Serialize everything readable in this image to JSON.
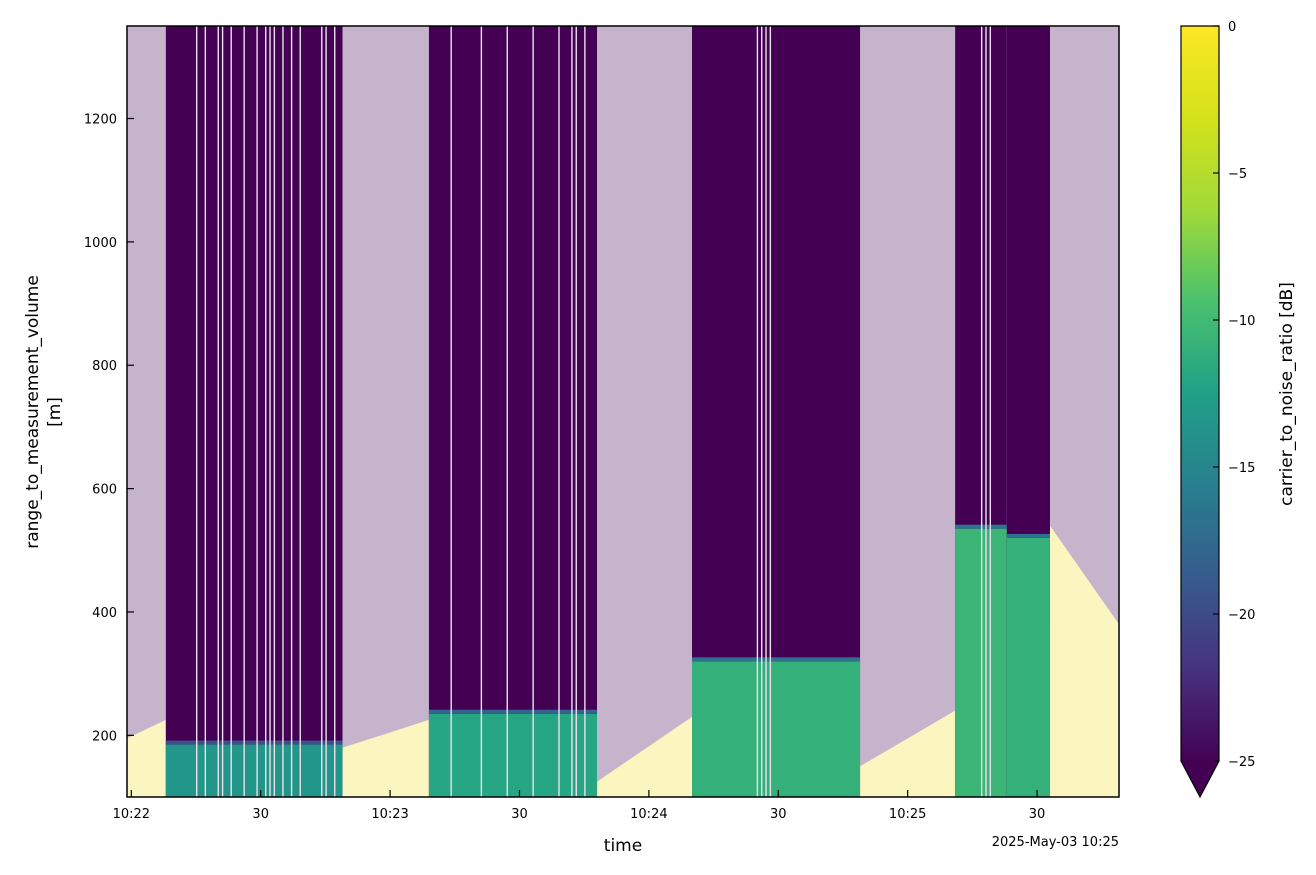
{
  "chart_data": {
    "type": "heatmap",
    "title": "",
    "xlabel": "time",
    "ylabel": "range_to_measurement_volume",
    "ylabel_unit": "[m]",
    "x_offset_label": "2025-May-03 10:25",
    "xlim": [
      "10:21:59",
      "10:25:49"
    ],
    "ylim": [
      100,
      1350
    ],
    "x_ticks": [
      {
        "t": "10:22:00",
        "label": "10:22"
      },
      {
        "t": "10:22:30",
        "label": "30"
      },
      {
        "t": "10:23:00",
        "label": "10:23"
      },
      {
        "t": "10:23:30",
        "label": "30"
      },
      {
        "t": "10:24:00",
        "label": "10:24"
      },
      {
        "t": "10:24:30",
        "label": "30"
      },
      {
        "t": "10:25:00",
        "label": "10:25"
      },
      {
        "t": "10:25:30",
        "label": "30"
      }
    ],
    "y_ticks": [
      200,
      400,
      600,
      800,
      1000,
      1200
    ],
    "colorbar": {
      "label": "carrier_to_noise_ratio [dB]",
      "colormap": "viridis",
      "min": -25,
      "max": 0,
      "extend": "min",
      "ticks": [
        0,
        -5,
        -10,
        -15,
        -20,
        -25
      ],
      "tick_labels": [
        "0",
        "−5",
        "−10",
        "−15",
        "−20",
        "−25"
      ]
    },
    "segments": [
      {
        "start": "10:21:59",
        "end": "10:22:08",
        "kind": "masked",
        "low_cnr_level": -2,
        "low_top": [
          195,
          225
        ]
      },
      {
        "start": "10:22:08",
        "end": "10:22:49",
        "kind": "data",
        "top": 185,
        "cnr_low": -13.5,
        "gaps": [
          "10:22:15",
          "10:22:17",
          "10:22:20",
          "10:22:21",
          "10:22:23",
          "10:22:26",
          "10:22:29",
          "10:22:31",
          "10:22:32",
          "10:22:33",
          "10:22:35",
          "10:22:37",
          "10:22:39",
          "10:22:44",
          "10:22:45",
          "10:22:47"
        ]
      },
      {
        "start": "10:22:49",
        "end": "10:23:09",
        "kind": "masked",
        "low_cnr_level": -2,
        "low_top": [
          180,
          225
        ]
      },
      {
        "start": "10:23:09",
        "end": "10:23:48",
        "kind": "data",
        "top": 235,
        "cnr_low": -12,
        "gaps": [
          "10:23:14",
          "10:23:21",
          "10:23:27",
          "10:23:33",
          "10:23:39",
          "10:23:42",
          "10:23:43",
          "10:23:45"
        ]
      },
      {
        "start": "10:23:48",
        "end": "10:24:10",
        "kind": "masked",
        "low_cnr_level": -2,
        "low_top": [
          125,
          230
        ]
      },
      {
        "start": "10:24:10",
        "end": "10:24:49",
        "kind": "data",
        "top": 320,
        "cnr_low": -11,
        "gaps": [
          "10:24:25",
          "10:24:26",
          "10:24:27",
          "10:24:28"
        ]
      },
      {
        "start": "10:24:49",
        "end": "10:25:11",
        "kind": "masked",
        "low_cnr_level": -2,
        "low_top": [
          150,
          240
        ]
      },
      {
        "start": "10:25:11",
        "end": "10:25:23",
        "kind": "data",
        "top": 535,
        "cnr_low": -10.5,
        "gaps": [
          "10:25:17",
          "10:25:18",
          "10:25:19"
        ]
      },
      {
        "start": "10:25:23",
        "end": "10:25:33",
        "kind": "data",
        "top": 520,
        "cnr_low": -11,
        "gaps": []
      },
      {
        "start": "10:25:33",
        "end": "10:25:49",
        "kind": "masked",
        "low_cnr_level": -2,
        "low_top": [
          540,
          380
        ]
      }
    ]
  }
}
